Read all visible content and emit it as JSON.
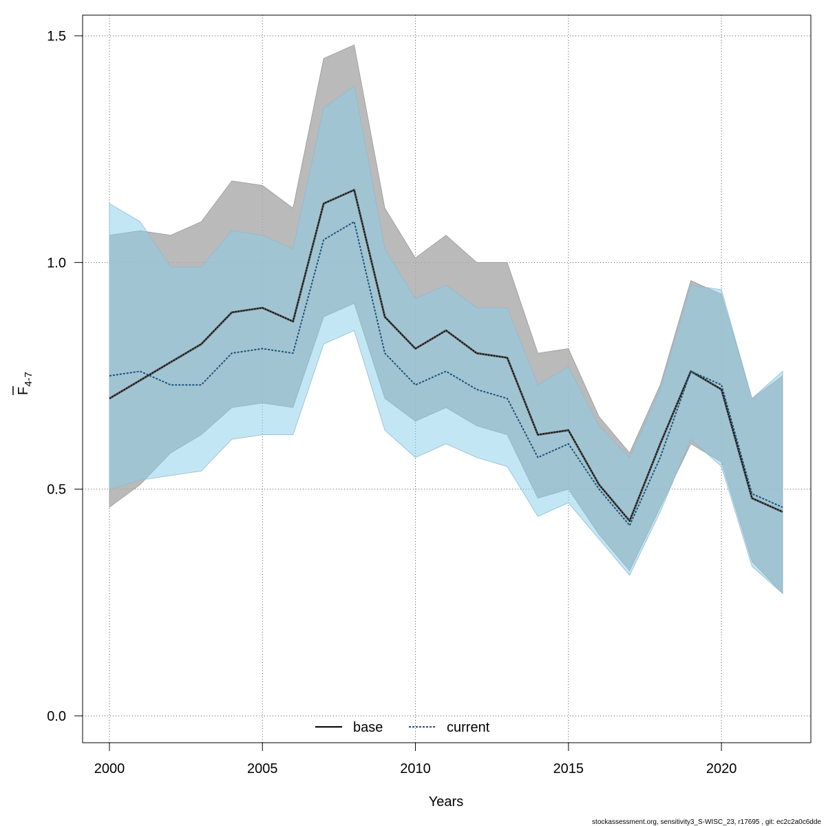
{
  "chart_data": {
    "type": "line",
    "xlabel": "Years",
    "ylabel": {
      "base": "F",
      "subscript": "4-7"
    },
    "xlim": [
      2000,
      2022
    ],
    "ylim": [
      0,
      1.5
    ],
    "x_ticks": [
      2000,
      2005,
      2010,
      2015,
      2020
    ],
    "y_ticks": [
      "0.0",
      "0.5",
      "1.0",
      "1.5"
    ],
    "grid": true,
    "legend_position": "bottom-center",
    "x": [
      2000,
      2001,
      2002,
      2003,
      2004,
      2005,
      2006,
      2007,
      2008,
      2009,
      2010,
      2011,
      2012,
      2013,
      2014,
      2015,
      2016,
      2017,
      2018,
      2019,
      2020,
      2021,
      2022
    ],
    "series": [
      {
        "name": "base",
        "line_style": "solid",
        "line_color": "#000000",
        "band_color": "#a9a9a9",
        "values": [
          0.7,
          0.74,
          0.78,
          0.82,
          0.89,
          0.9,
          0.87,
          1.13,
          1.16,
          0.88,
          0.81,
          0.85,
          0.8,
          0.79,
          0.62,
          0.63,
          0.51,
          0.43,
          0.6,
          0.76,
          0.72,
          0.48,
          0.45
        ],
        "lower": [
          0.46,
          0.51,
          0.58,
          0.62,
          0.68,
          0.69,
          0.68,
          0.88,
          0.91,
          0.7,
          0.65,
          0.68,
          0.64,
          0.62,
          0.48,
          0.5,
          0.4,
          0.32,
          0.46,
          0.6,
          0.56,
          0.34,
          0.27
        ],
        "upper": [
          1.06,
          1.07,
          1.06,
          1.09,
          1.18,
          1.17,
          1.12,
          1.45,
          1.48,
          1.12,
          1.01,
          1.06,
          1.0,
          1.0,
          0.8,
          0.81,
          0.66,
          0.58,
          0.73,
          0.96,
          0.93,
          0.7,
          0.75
        ]
      },
      {
        "name": "current",
        "line_style": "dotted",
        "line_color": "#1a5276",
        "band_color": "#87ceeb",
        "values": [
          0.75,
          0.76,
          0.73,
          0.73,
          0.8,
          0.81,
          0.8,
          1.05,
          1.09,
          0.8,
          0.73,
          0.76,
          0.72,
          0.7,
          0.57,
          0.6,
          0.5,
          0.42,
          0.57,
          0.76,
          0.73,
          0.49,
          0.46
        ],
        "lower": [
          0.5,
          0.52,
          0.53,
          0.54,
          0.61,
          0.62,
          0.62,
          0.82,
          0.85,
          0.63,
          0.57,
          0.6,
          0.57,
          0.55,
          0.44,
          0.47,
          0.39,
          0.31,
          0.45,
          0.61,
          0.55,
          0.33,
          0.27
        ],
        "upper": [
          1.13,
          1.09,
          0.99,
          0.99,
          1.07,
          1.06,
          1.03,
          1.34,
          1.39,
          1.03,
          0.92,
          0.95,
          0.9,
          0.9,
          0.73,
          0.77,
          0.64,
          0.57,
          0.72,
          0.95,
          0.94,
          0.7,
          0.76
        ]
      }
    ]
  },
  "footer": "stockassessment.org, sensitivity3_S-WISC_23, r17695 , git: ec2c2a0c6dde"
}
